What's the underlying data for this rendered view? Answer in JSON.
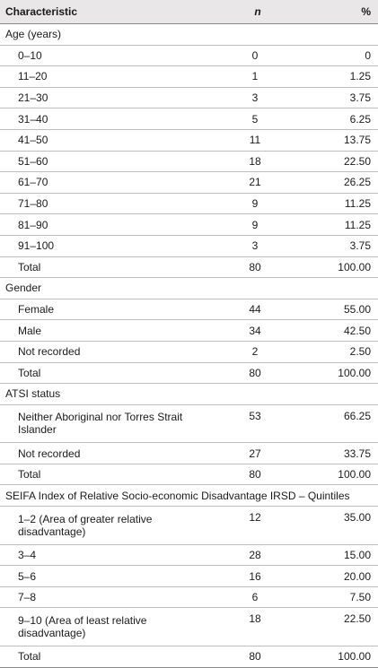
{
  "header": {
    "characteristic": "Characteristic",
    "n": "n",
    "pct": "%"
  },
  "rows": [
    {
      "type": "section",
      "label": "Age (years)"
    },
    {
      "label": "0–10",
      "n": "0",
      "pct": "0"
    },
    {
      "label": "11–20",
      "n": "1",
      "pct": "1.25"
    },
    {
      "label": "21–30",
      "n": "3",
      "pct": "3.75"
    },
    {
      "label": "31–40",
      "n": "5",
      "pct": "6.25"
    },
    {
      "label": "41–50",
      "n": "11",
      "pct": "13.75"
    },
    {
      "label": "51–60",
      "n": "18",
      "pct": "22.50"
    },
    {
      "label": "61–70",
      "n": "21",
      "pct": "26.25"
    },
    {
      "label": "71–80",
      "n": "9",
      "pct": "11.25"
    },
    {
      "label": "81–90",
      "n": "9",
      "pct": "11.25"
    },
    {
      "label": "91–100",
      "n": "3",
      "pct": "3.75"
    },
    {
      "label": "Total",
      "n": "80",
      "pct": "100.00"
    },
    {
      "type": "section",
      "label": "Gender"
    },
    {
      "label": "Female",
      "n": "44",
      "pct": "55.00"
    },
    {
      "label": "Male",
      "n": "34",
      "pct": "42.50"
    },
    {
      "label": "Not recorded",
      "n": "2",
      "pct": "2.50"
    },
    {
      "label": "Total",
      "n": "80",
      "pct": "100.00"
    },
    {
      "type": "section",
      "label": "ATSI status"
    },
    {
      "label": "Neither Aboriginal nor Torres Strait Islander",
      "n": "53",
      "pct": "66.25",
      "tall": true
    },
    {
      "label": "Not recorded",
      "n": "27",
      "pct": "33.75"
    },
    {
      "label": "Total",
      "n": "80",
      "pct": "100.00"
    },
    {
      "type": "section",
      "label": "SEIFA Index of Relative Socio-economic Disadvantage IRSD – Quintiles"
    },
    {
      "label": "1–2 (Area of greater relative disadvantage)",
      "n": "12",
      "pct": "35.00",
      "tall": true
    },
    {
      "label": "3–4",
      "n": "28",
      "pct": "15.00"
    },
    {
      "label": "5–6",
      "n": "16",
      "pct": "20.00"
    },
    {
      "label": "7–8",
      "n": "6",
      "pct": "7.50"
    },
    {
      "label": "9–10 (Area of least relative disadvantage)",
      "n": "18",
      "pct": "22.50",
      "tall": true
    },
    {
      "label": "Total",
      "n": "80",
      "pct": "100.00"
    }
  ]
}
